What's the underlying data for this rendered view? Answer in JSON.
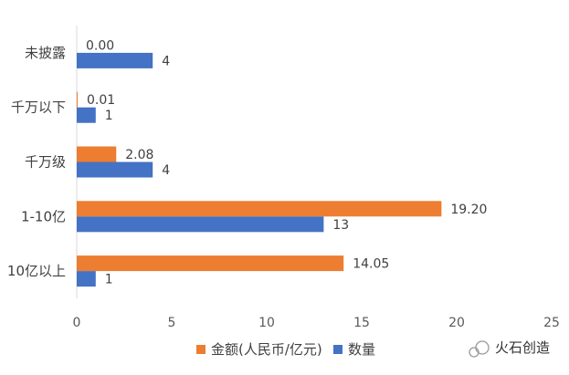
{
  "chart_data": {
    "type": "bar",
    "orientation": "horizontal",
    "categories": [
      "未披露",
      "千万以下",
      "千万级",
      "1-10亿",
      "10亿以上"
    ],
    "series": [
      {
        "name": "金额(人民币/亿元)",
        "color": "#ED7D31",
        "values": [
          0.0,
          0.01,
          2.08,
          19.2,
          14.05
        ],
        "labels": [
          "0.00",
          "0.01",
          "2.08",
          "19.20",
          "14.05"
        ]
      },
      {
        "name": "数量",
        "color": "#4472C4",
        "values": [
          4,
          1,
          4,
          13,
          1
        ],
        "labels": [
          "4",
          "1",
          "4",
          "13",
          "1"
        ]
      }
    ],
    "xlim": [
      0,
      25
    ],
    "xticks": [
      0,
      5,
      10,
      15,
      20,
      25
    ],
    "grid": false,
    "legend_position": "bottom"
  },
  "watermark": {
    "text": "火石创造",
    "icon": "wechat-icon"
  }
}
